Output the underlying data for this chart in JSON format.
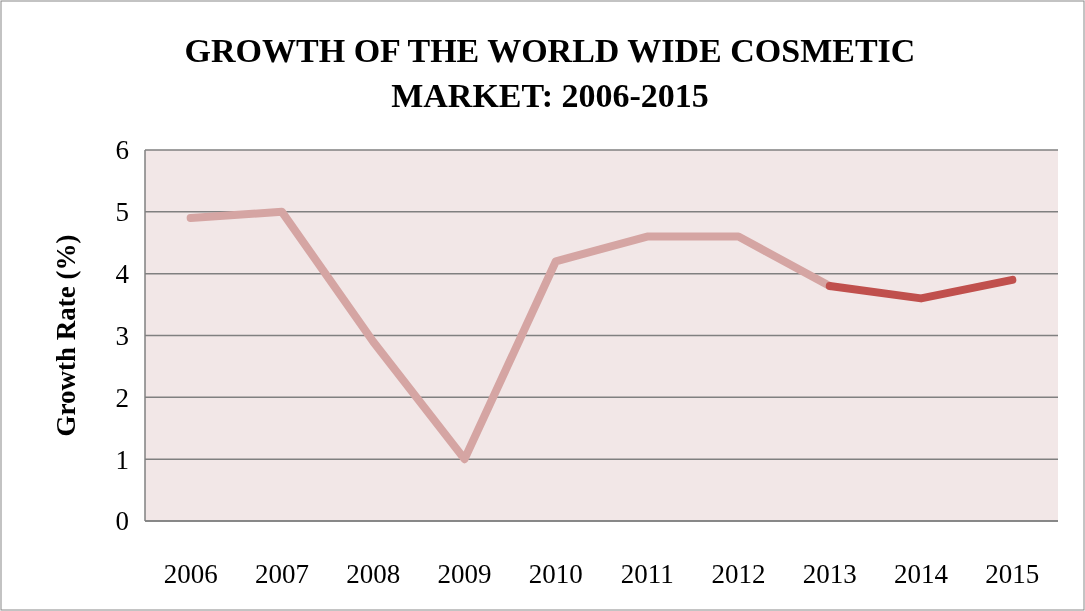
{
  "chart_data": {
    "type": "line",
    "title": "GROWTH OF THE WORLD WIDE COSMETIC MARKET: 2006-2015",
    "ylabel": "Growth Rate (%)",
    "categories": [
      "2006",
      "2007",
      "2008",
      "2009",
      "2010",
      "2011",
      "2012",
      "2013",
      "2014",
      "2015"
    ],
    "series": [
      {
        "color": "#d5a5a3",
        "values": [
          4.9,
          5.0,
          2.9,
          1.0,
          4.2,
          4.6,
          4.6,
          3.8,
          null,
          null
        ]
      },
      {
        "color": "#c0504d",
        "values": [
          null,
          null,
          null,
          null,
          null,
          null,
          null,
          3.8,
          3.6,
          3.9
        ]
      }
    ],
    "ylim": [
      0,
      6
    ],
    "yticks": [
      0,
      1,
      2,
      3,
      4,
      5,
      6
    ],
    "grid": "y",
    "marker": "none",
    "line_style": "solid"
  }
}
